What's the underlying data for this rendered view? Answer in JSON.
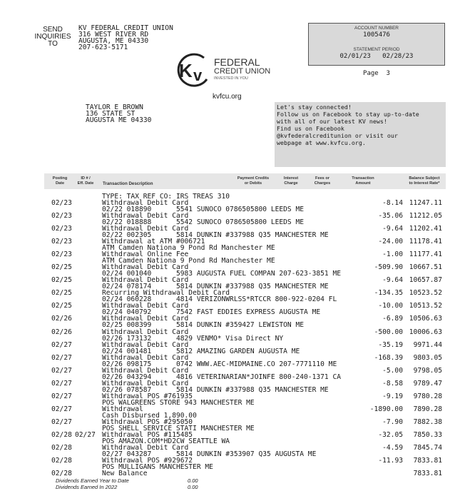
{
  "send_inquiries": [
    "SEND",
    "INQUIRIES",
    "TO"
  ],
  "credit_union_address": [
    "KV FEDERAL CREDIT UNION",
    "316 WEST RIVER RD",
    "AUGUSTA, ME 04330",
    "207-623-5171"
  ],
  "account": {
    "number_label": "ACCOUNT NUMBER",
    "number": "1005476",
    "period_label": "STATEMENT PERIOD",
    "period_start": "02/01/23",
    "period_end": "02/28/23",
    "page": "Page  3"
  },
  "logo": {
    "mark": "KV",
    "line1": "FEDERAL",
    "line2": "CREDIT UNION",
    "tagline": "INVESTED IN YOU"
  },
  "website": "kvfcu.org",
  "member_address": [
    "TAYLOR E BROWN",
    "136 STATE ST",
    "AUGUSTA ME 04330"
  ],
  "connect_message": [
    "Let's stay connected!",
    "Follow us on Facebook to stay up-to-date",
    "with all of our latest KV news!",
    "Find us on Facebook",
    "@kvfederalcreditunion or visit our",
    "webpage at www.kvfcu.org."
  ],
  "columns": {
    "posting_date": [
      "Posting",
      "Date"
    ],
    "id_eff": [
      "ID # /",
      "Eff. Date"
    ],
    "description": [
      "",
      "Transaction Description"
    ],
    "payment": [
      "Payment Credits",
      "or Debits"
    ],
    "interest": [
      "Interest",
      "Charge"
    ],
    "fees": [
      "Fees or",
      "Charges"
    ],
    "amount": [
      "Transaction",
      "Amount"
    ],
    "balance": [
      "Balance Subject",
      "to Interest Rate*"
    ]
  },
  "carryover_line": "TYPE: TAX REF CO: IRS TREAS 310",
  "transactions": [
    {
      "date": "02/23",
      "eff": "",
      "line1": "Withdrawal Debit Card",
      "line2": "02/22 018890      5541 SUNOCO 0786505800 LEEDS ME",
      "amount": "-8.14",
      "balance": "11247.11"
    },
    {
      "date": "02/23",
      "eff": "",
      "line1": "Withdrawal Debit Card",
      "line2": "02/22 018888      5542 SUNOCO 0786505800 LEEDS ME",
      "amount": "-35.06",
      "balance": "11212.05"
    },
    {
      "date": "02/23",
      "eff": "",
      "line1": "Withdrawal Debit Card",
      "line2": "02/22 002305      5814 DUNKIN #337988 Q35 MANCHESTER ME",
      "amount": "-9.64",
      "balance": "11202.41"
    },
    {
      "date": "02/23",
      "eff": "",
      "line1": "Withdrawal at ATM #006721",
      "line2": "ATM Camden Nationa 9 Pond Rd Manchester ME",
      "amount": "-24.00",
      "balance": "11178.41"
    },
    {
      "date": "02/23",
      "eff": "",
      "line1": "Withdrawal Online Fee",
      "line2": "ATM Camden Nationa 9 Pond Rd Manchester ME",
      "amount": "-1.00",
      "balance": "11177.41"
    },
    {
      "date": "02/25",
      "eff": "",
      "line1": "Withdrawal Debit Card",
      "line2": "02/24 001040      5983 AUGUSTA FUEL COMPAN 207-623-3851 ME",
      "amount": "-509.90",
      "balance": "10667.51"
    },
    {
      "date": "02/25",
      "eff": "",
      "line1": "Withdrawal Debit Card",
      "line2": "02/24 078174      5814 DUNKIN #337988 Q35 MANCHESTER ME",
      "amount": "-9.64",
      "balance": "10657.87"
    },
    {
      "date": "02/25",
      "eff": "",
      "line1": "Recurring Withdrawal Debit Card",
      "line2": "02/24 060228      4814 VERIZONWRLSS*RTCCR 800-922-0204 FL",
      "amount": "-134.35",
      "balance": "10523.52"
    },
    {
      "date": "02/25",
      "eff": "",
      "line1": "Withdrawal Debit Card",
      "line2": "02/24 040792      7542 FAST EDDIES EXPRESS AUGUSTA ME",
      "amount": "-10.00",
      "balance": "10513.52"
    },
    {
      "date": "02/26",
      "eff": "",
      "line1": "Withdrawal Debit Card",
      "line2": "02/25 008399      5814 DUNKIN #359427 LEWISTON ME",
      "amount": "-6.89",
      "balance": "10506.63"
    },
    {
      "date": "02/26",
      "eff": "",
      "line1": "Withdrawal Debit Card",
      "line2": "02/26 173132      4829 VENMO* Visa Direct NY",
      "amount": "-500.00",
      "balance": "10006.63"
    },
    {
      "date": "02/27",
      "eff": "",
      "line1": "Withdrawal Debit Card",
      "line2": "02/24 001481      5812 AMAZING GARDEN AUGUSTA ME",
      "amount": "-35.19",
      "balance": "9971.44"
    },
    {
      "date": "02/27",
      "eff": "",
      "line1": "Withdrawal Debit Card",
      "line2": "02/26 098175      0742 WWW.AEC-MIDMAINE.CO 207-7771110 ME",
      "amount": "-168.39",
      "balance": "9803.05"
    },
    {
      "date": "02/27",
      "eff": "",
      "line1": "Withdrawal Debit Card",
      "line2": "02/26 043294      4816 VETERINARIAN*JOINFE 800-240-1371 CA",
      "amount": "-5.00",
      "balance": "9798.05"
    },
    {
      "date": "02/27",
      "eff": "",
      "line1": "Withdrawal Debit Card",
      "line2": "02/26 078587      5814 DUNKIN #337988 Q35 MANCHESTER ME",
      "amount": "-8.58",
      "balance": "9789.47"
    },
    {
      "date": "02/27",
      "eff": "",
      "line1": "Withdrawal POS #761935",
      "line2": "POS WALGREENS STORE 943 MANCHESTER ME",
      "amount": "-9.19",
      "balance": "9780.28"
    },
    {
      "date": "02/27",
      "eff": "",
      "line1": "Withdrawal",
      "line2": "Cash Disbursed 1,890.00",
      "amount": "-1890.00",
      "balance": "7890.28"
    },
    {
      "date": "02/27",
      "eff": "",
      "line1": "Withdrawal POS #295050",
      "line2": "POS SHELL SERVICE STATI MANCHESTER ME",
      "amount": "-7.90",
      "balance": "7882.38"
    },
    {
      "date": "02/28",
      "eff": "02/27",
      "line1": "Withdrawal POS #115485",
      "line2": "POS AMAZON.COM*HD2CW SEATTLE WA",
      "amount": "-32.05",
      "balance": "7850.33"
    },
    {
      "date": "02/28",
      "eff": "",
      "line1": "Withdrawal Debit Card",
      "line2": "02/27 043287      5814 DUNKIN #353907 Q35 AUGUSTA ME",
      "amount": "-4.59",
      "balance": "7845.74"
    },
    {
      "date": "02/28",
      "eff": "",
      "line1": "Withdrawal POS #929672",
      "line2": "POS MULLIGANS MANCHESTER ME",
      "amount": "-11.93",
      "balance": "7833.81"
    },
    {
      "date": "02/28",
      "eff": "",
      "line1": "New Balance",
      "line2": "",
      "amount": "",
      "balance": "7833.81"
    }
  ],
  "dividends": [
    {
      "label": "Dividends Earned Year to Date",
      "value": "0.00"
    },
    {
      "label": "Dividends Earned In 2022",
      "value": "0.00"
    }
  ]
}
